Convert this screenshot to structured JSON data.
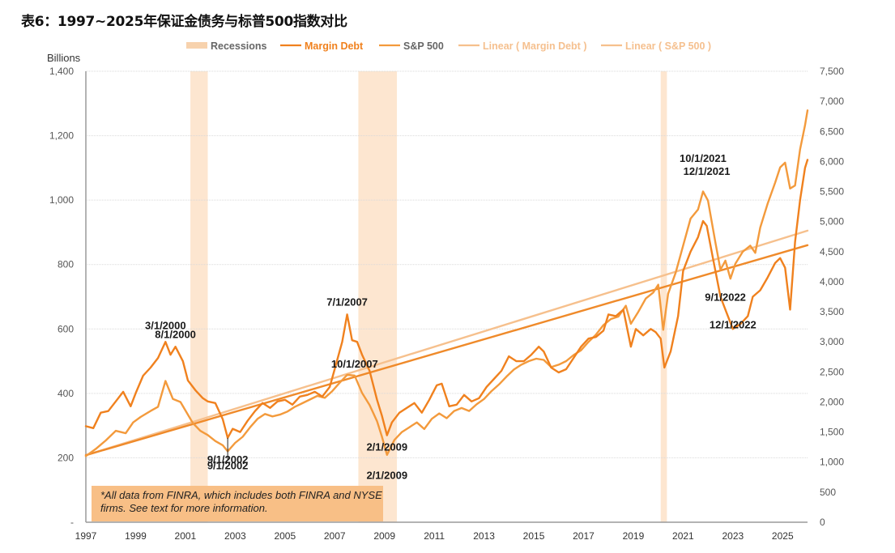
{
  "title": "表6：1997~2025年保证金债务与标普500指数对比",
  "colors": {
    "margin_debt": "#f0811e",
    "sp500": "#f39a3c",
    "linear_margin": "#ef8a2a",
    "linear_sp500": "#f6c08d",
    "recession": "#fde6d0",
    "note_box": "#f8bf86",
    "grid": "#d9d9d9",
    "legend_gray": "#666666",
    "legend_linear": "#f5c08f"
  },
  "note": "*All data from FINRA, which includes both FINRA and NYSE firms. See text for more information.",
  "chart_data": {
    "type": "line",
    "title": "表6：1997~2025年保证金债务与标普500指数对比",
    "xlabel": "",
    "ylabel": "Billions",
    "y2label": "",
    "legend_position": "top",
    "grid": true,
    "xlim": [
      1997,
      2026
    ],
    "ylim": [
      0,
      1400
    ],
    "y2lim": [
      0,
      7500
    ],
    "x_ticks": [
      "1997",
      "1999",
      "2001",
      "2003",
      "2005",
      "2007",
      "2009",
      "2011",
      "2013",
      "2015",
      "2017",
      "2019",
      "2021",
      "2023",
      "2025"
    ],
    "y_ticks": [
      "-",
      "200",
      "400",
      "600",
      "800",
      "1,000",
      "1,200",
      "1,400"
    ],
    "y2_ticks": [
      "0",
      "500",
      "1,000",
      "1,500",
      "2,000",
      "2,500",
      "3,000",
      "3,500",
      "4,000",
      "4,500",
      "5,000",
      "5,500",
      "6,000",
      "6,500",
      "7,000",
      "7,500"
    ],
    "legend": [
      {
        "name": "Recessions",
        "kind": "band"
      },
      {
        "name": "Margin Debt",
        "kind": "line"
      },
      {
        "name": "S&P 500",
        "kind": "line"
      },
      {
        "name": "Linear ( Margin Debt )",
        "kind": "trend"
      },
      {
        "name": "Linear ( S&P 500 )",
        "kind": "trend"
      }
    ],
    "recessions": [
      {
        "start": 2001.2,
        "end": 2001.9
      },
      {
        "start": 2007.95,
        "end": 2009.5
      },
      {
        "start": 2020.1,
        "end": 2020.35
      }
    ],
    "series": [
      {
        "name": "Margin Debt",
        "axis": "left",
        "points": [
          [
            1997.0,
            298
          ],
          [
            1997.3,
            292
          ],
          [
            1997.6,
            340
          ],
          [
            1997.9,
            345
          ],
          [
            1998.2,
            375
          ],
          [
            1998.5,
            405
          ],
          [
            1998.8,
            360
          ],
          [
            1999.0,
            400
          ],
          [
            1999.3,
            455
          ],
          [
            1999.6,
            480
          ],
          [
            1999.9,
            510
          ],
          [
            2000.2,
            560
          ],
          [
            2000.4,
            520
          ],
          [
            2000.6,
            545
          ],
          [
            2000.9,
            500
          ],
          [
            2001.1,
            440
          ],
          [
            2001.4,
            410
          ],
          [
            2001.7,
            385
          ],
          [
            2001.9,
            375
          ],
          [
            2002.2,
            370
          ],
          [
            2002.5,
            320
          ],
          [
            2002.7,
            262
          ],
          [
            2002.9,
            290
          ],
          [
            2003.2,
            280
          ],
          [
            2003.5,
            315
          ],
          [
            2003.8,
            345
          ],
          [
            2004.1,
            370
          ],
          [
            2004.4,
            355
          ],
          [
            2004.7,
            375
          ],
          [
            2005.0,
            380
          ],
          [
            2005.3,
            365
          ],
          [
            2005.6,
            390
          ],
          [
            2005.9,
            395
          ],
          [
            2006.2,
            405
          ],
          [
            2006.5,
            390
          ],
          [
            2006.8,
            420
          ],
          [
            2007.0,
            475
          ],
          [
            2007.3,
            560
          ],
          [
            2007.5,
            645
          ],
          [
            2007.7,
            565
          ],
          [
            2007.9,
            560
          ],
          [
            2008.1,
            520
          ],
          [
            2008.4,
            470
          ],
          [
            2008.7,
            380
          ],
          [
            2008.9,
            330
          ],
          [
            2009.1,
            270
          ],
          [
            2009.3,
            310
          ],
          [
            2009.6,
            340
          ],
          [
            2009.9,
            355
          ],
          [
            2010.2,
            370
          ],
          [
            2010.5,
            340
          ],
          [
            2010.8,
            380
          ],
          [
            2011.1,
            425
          ],
          [
            2011.3,
            430
          ],
          [
            2011.6,
            360
          ],
          [
            2011.9,
            365
          ],
          [
            2012.2,
            395
          ],
          [
            2012.5,
            375
          ],
          [
            2012.8,
            385
          ],
          [
            2013.1,
            420
          ],
          [
            2013.4,
            445
          ],
          [
            2013.7,
            470
          ],
          [
            2014.0,
            515
          ],
          [
            2014.3,
            500
          ],
          [
            2014.6,
            500
          ],
          [
            2014.9,
            520
          ],
          [
            2015.2,
            545
          ],
          [
            2015.4,
            530
          ],
          [
            2015.7,
            480
          ],
          [
            2016.0,
            465
          ],
          [
            2016.3,
            475
          ],
          [
            2016.6,
            510
          ],
          [
            2016.9,
            545
          ],
          [
            2017.2,
            570
          ],
          [
            2017.5,
            575
          ],
          [
            2017.8,
            595
          ],
          [
            2018.0,
            645
          ],
          [
            2018.3,
            640
          ],
          [
            2018.6,
            660
          ],
          [
            2018.9,
            545
          ],
          [
            2019.1,
            600
          ],
          [
            2019.4,
            580
          ],
          [
            2019.7,
            600
          ],
          [
            2019.9,
            590
          ],
          [
            2020.1,
            570
          ],
          [
            2020.25,
            480
          ],
          [
            2020.5,
            530
          ],
          [
            2020.8,
            640
          ],
          [
            2021.0,
            780
          ],
          [
            2021.3,
            840
          ],
          [
            2021.6,
            885
          ],
          [
            2021.8,
            935
          ],
          [
            2021.95,
            920
          ],
          [
            2022.2,
            820
          ],
          [
            2022.5,
            700
          ],
          [
            2022.7,
            660
          ],
          [
            2023.0,
            600
          ],
          [
            2023.3,
            615
          ],
          [
            2023.6,
            640
          ],
          [
            2023.8,
            700
          ],
          [
            2024.1,
            720
          ],
          [
            2024.4,
            760
          ],
          [
            2024.7,
            805
          ],
          [
            2024.9,
            820
          ],
          [
            2025.1,
            790
          ],
          [
            2025.3,
            660
          ],
          [
            2025.5,
            870
          ],
          [
            2025.7,
            1000
          ],
          [
            2025.9,
            1100
          ],
          [
            2026.0,
            1125
          ]
        ]
      },
      {
        "name": "S&P 500",
        "axis": "right",
        "points": [
          [
            1997.0,
            1100
          ],
          [
            1997.4,
            1220
          ],
          [
            1997.8,
            1360
          ],
          [
            1998.2,
            1520
          ],
          [
            1998.6,
            1480
          ],
          [
            1998.9,
            1660
          ],
          [
            1999.2,
            1750
          ],
          [
            1999.6,
            1850
          ],
          [
            1999.9,
            1920
          ],
          [
            2000.2,
            2350
          ],
          [
            2000.5,
            2050
          ],
          [
            2000.8,
            2000
          ],
          [
            2001.0,
            1860
          ],
          [
            2001.3,
            1650
          ],
          [
            2001.6,
            1520
          ],
          [
            2001.9,
            1450
          ],
          [
            2002.2,
            1350
          ],
          [
            2002.5,
            1280
          ],
          [
            2002.7,
            1180
          ],
          [
            2003.0,
            1320
          ],
          [
            2003.3,
            1420
          ],
          [
            2003.6,
            1580
          ],
          [
            2003.9,
            1720
          ],
          [
            2004.2,
            1800
          ],
          [
            2004.5,
            1760
          ],
          [
            2004.8,
            1790
          ],
          [
            2005.1,
            1840
          ],
          [
            2005.4,
            1920
          ],
          [
            2005.7,
            1980
          ],
          [
            2006.0,
            2040
          ],
          [
            2006.3,
            2100
          ],
          [
            2006.6,
            2070
          ],
          [
            2006.9,
            2180
          ],
          [
            2007.2,
            2320
          ],
          [
            2007.5,
            2450
          ],
          [
            2007.8,
            2440
          ],
          [
            2008.1,
            2150
          ],
          [
            2008.4,
            1950
          ],
          [
            2008.7,
            1680
          ],
          [
            2008.9,
            1420
          ],
          [
            2009.1,
            1120
          ],
          [
            2009.4,
            1370
          ],
          [
            2009.7,
            1500
          ],
          [
            2010.0,
            1580
          ],
          [
            2010.3,
            1660
          ],
          [
            2010.6,
            1550
          ],
          [
            2010.9,
            1720
          ],
          [
            2011.2,
            1810
          ],
          [
            2011.5,
            1730
          ],
          [
            2011.8,
            1850
          ],
          [
            2012.1,
            1900
          ],
          [
            2012.4,
            1850
          ],
          [
            2012.7,
            1960
          ],
          [
            2013.0,
            2050
          ],
          [
            2013.3,
            2180
          ],
          [
            2013.6,
            2290
          ],
          [
            2013.9,
            2420
          ],
          [
            2014.2,
            2540
          ],
          [
            2014.5,
            2620
          ],
          [
            2014.8,
            2680
          ],
          [
            2015.1,
            2720
          ],
          [
            2015.4,
            2700
          ],
          [
            2015.7,
            2580
          ],
          [
            2016.0,
            2620
          ],
          [
            2016.3,
            2680
          ],
          [
            2016.6,
            2780
          ],
          [
            2016.9,
            2860
          ],
          [
            2017.2,
            3000
          ],
          [
            2017.5,
            3120
          ],
          [
            2017.8,
            3280
          ],
          [
            2018.1,
            3380
          ],
          [
            2018.4,
            3420
          ],
          [
            2018.7,
            3600
          ],
          [
            2018.9,
            3300
          ],
          [
            2019.2,
            3500
          ],
          [
            2019.5,
            3720
          ],
          [
            2019.8,
            3820
          ],
          [
            2020.0,
            3950
          ],
          [
            2020.2,
            3200
          ],
          [
            2020.4,
            3800
          ],
          [
            2020.7,
            4150
          ],
          [
            2021.0,
            4600
          ],
          [
            2021.3,
            5050
          ],
          [
            2021.6,
            5200
          ],
          [
            2021.8,
            5500
          ],
          [
            2022.0,
            5350
          ],
          [
            2022.3,
            4650
          ],
          [
            2022.5,
            4200
          ],
          [
            2022.7,
            4350
          ],
          [
            2022.9,
            4050
          ],
          [
            2023.1,
            4300
          ],
          [
            2023.4,
            4500
          ],
          [
            2023.7,
            4600
          ],
          [
            2023.9,
            4480
          ],
          [
            2024.1,
            4900
          ],
          [
            2024.4,
            5300
          ],
          [
            2024.7,
            5650
          ],
          [
            2024.9,
            5900
          ],
          [
            2025.1,
            5980
          ],
          [
            2025.3,
            5550
          ],
          [
            2025.5,
            5600
          ],
          [
            2025.7,
            6200
          ],
          [
            2025.9,
            6600
          ],
          [
            2026.0,
            6850
          ]
        ]
      },
      {
        "name": "Linear ( Margin Debt )",
        "axis": "left",
        "points": [
          [
            1997.0,
            208
          ],
          [
            2026.0,
            860
          ]
        ]
      },
      {
        "name": "Linear ( S&P 500 )",
        "axis": "left",
        "points": [
          [
            1997.0,
            208
          ],
          [
            2026.0,
            905
          ]
        ]
      }
    ],
    "annotations": [
      {
        "text": "3/1/2000",
        "x": 2000.2,
        "y": 600
      },
      {
        "text": "8/1/2000",
        "x": 2000.6,
        "y": 572
      },
      {
        "text": "9/1/2002",
        "x": 2002.7,
        "y": 183
      },
      {
        "text": "9/1/2002",
        "x": 2002.7,
        "y": 165
      },
      {
        "text": "7/1/2007",
        "x": 2007.5,
        "y": 672
      },
      {
        "text": "10/1/2007",
        "x": 2007.8,
        "y": 480
      },
      {
        "text": "2/1/2009",
        "x": 2009.1,
        "y": 222
      },
      {
        "text": "2/1/2009",
        "x": 2009.1,
        "y": 135
      },
      {
        "text": "10/1/2021",
        "x": 2021.8,
        "y": 1118
      },
      {
        "text": "12/1/2021",
        "x": 2021.95,
        "y": 1078
      },
      {
        "text": "9/1/2022",
        "x": 2022.7,
        "y": 688
      },
      {
        "text": "12/1/2022",
        "x": 2023.0,
        "y": 602
      }
    ]
  }
}
